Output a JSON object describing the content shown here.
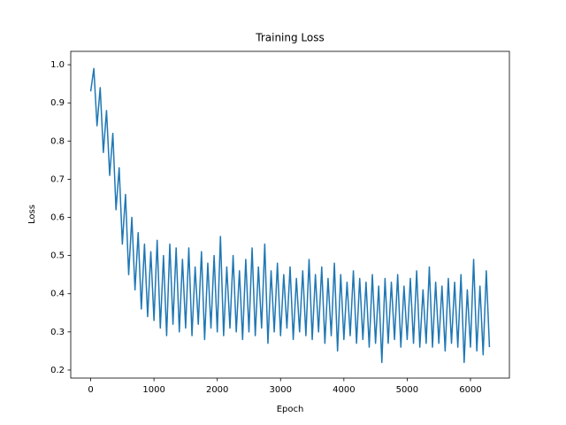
{
  "chart_data": {
    "type": "line",
    "title": "Training Loss",
    "x_label": "Epoch",
    "y_label": "Loss",
    "color": "#1f77b4",
    "x": [
      0,
      50,
      100,
      150,
      200,
      250,
      300,
      350,
      400,
      450,
      500,
      550,
      600,
      650,
      700,
      750,
      800,
      850,
      900,
      950,
      1000,
      1050,
      1100,
      1150,
      1200,
      1250,
      1300,
      1350,
      1400,
      1450,
      1500,
      1550,
      1600,
      1650,
      1700,
      1750,
      1800,
      1850,
      1900,
      1950,
      2000,
      2050,
      2100,
      2150,
      2200,
      2250,
      2300,
      2350,
      2400,
      2450,
      2500,
      2550,
      2600,
      2650,
      2700,
      2750,
      2800,
      2850,
      2900,
      2950,
      3000,
      3050,
      3100,
      3150,
      3200,
      3250,
      3300,
      3350,
      3400,
      3450,
      3500,
      3550,
      3600,
      3650,
      3700,
      3750,
      3800,
      3850,
      3900,
      3950,
      4000,
      4050,
      4100,
      4150,
      4200,
      4250,
      4300,
      4350,
      4400,
      4450,
      4500,
      4550,
      4600,
      4650,
      4700,
      4750,
      4800,
      4850,
      4900,
      4950,
      5000,
      5050,
      5100,
      5150,
      5200,
      5250,
      5300,
      5350,
      5400,
      5450,
      5500,
      5550,
      5600,
      5650,
      5700,
      5750,
      5800,
      5850,
      5900,
      5950,
      6000,
      6050,
      6100,
      6150,
      6200,
      6250,
      6300
    ],
    "values": [
      0.93,
      0.99,
      0.84,
      0.94,
      0.77,
      0.88,
      0.71,
      0.82,
      0.62,
      0.73,
      0.53,
      0.66,
      0.45,
      0.6,
      0.41,
      0.56,
      0.36,
      0.53,
      0.34,
      0.51,
      0.33,
      0.54,
      0.31,
      0.5,
      0.29,
      0.53,
      0.32,
      0.52,
      0.3,
      0.49,
      0.31,
      0.52,
      0.29,
      0.47,
      0.32,
      0.51,
      0.28,
      0.48,
      0.31,
      0.5,
      0.3,
      0.55,
      0.29,
      0.47,
      0.31,
      0.5,
      0.3,
      0.46,
      0.28,
      0.49,
      0.3,
      0.52,
      0.29,
      0.47,
      0.31,
      0.53,
      0.27,
      0.46,
      0.3,
      0.48,
      0.29,
      0.45,
      0.31,
      0.47,
      0.28,
      0.44,
      0.3,
      0.46,
      0.29,
      0.49,
      0.28,
      0.45,
      0.3,
      0.47,
      0.27,
      0.44,
      0.29,
      0.48,
      0.25,
      0.45,
      0.28,
      0.43,
      0.29,
      0.46,
      0.27,
      0.44,
      0.28,
      0.43,
      0.26,
      0.45,
      0.27,
      0.42,
      0.22,
      0.44,
      0.27,
      0.43,
      0.28,
      0.45,
      0.26,
      0.42,
      0.28,
      0.44,
      0.27,
      0.46,
      0.26,
      0.41,
      0.27,
      0.47,
      0.26,
      0.43,
      0.27,
      0.42,
      0.25,
      0.44,
      0.27,
      0.43,
      0.26,
      0.45,
      0.22,
      0.41,
      0.26,
      0.49,
      0.25,
      0.42,
      0.24,
      0.46,
      0.26
    ],
    "xlim": [
      -315,
      6615
    ],
    "ylim": [
      0.179,
      1.035
    ],
    "xticks": [
      0,
      1000,
      2000,
      3000,
      4000,
      5000,
      6000
    ],
    "yticks": [
      0.2,
      0.3,
      0.4,
      0.5,
      0.6,
      0.7,
      0.8,
      0.9,
      {
        "value": 1,
        "label": "1.0"
      }
    ]
  }
}
